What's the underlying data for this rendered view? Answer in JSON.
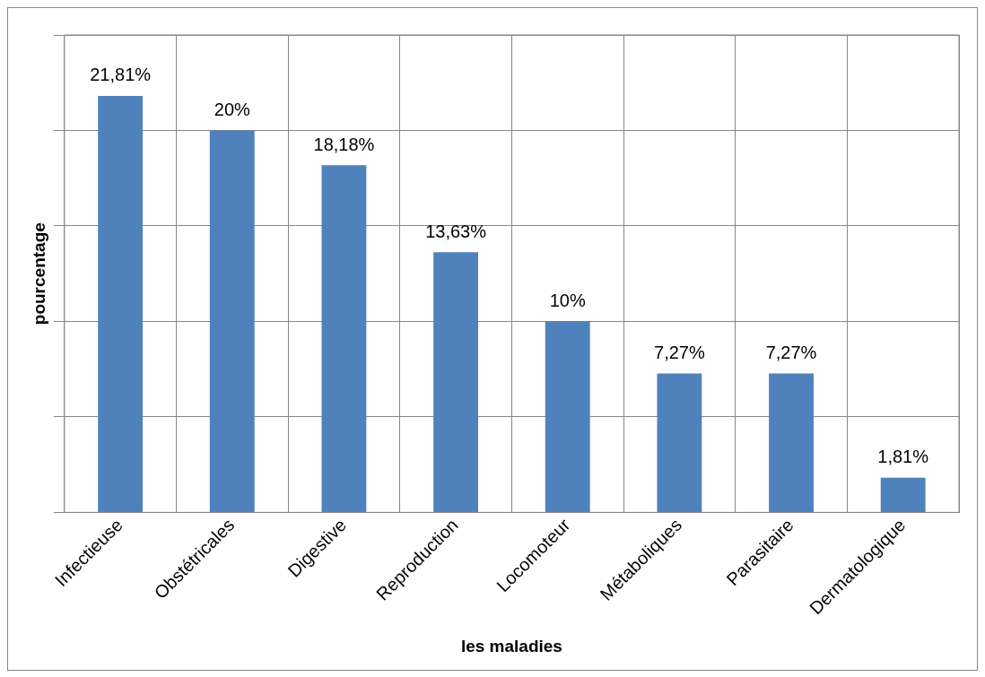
{
  "chart_data": {
    "type": "bar",
    "xlabel": "les maladies",
    "ylabel": "pourcentage",
    "categories": [
      "Infectieuse",
      "Obstétricales",
      "Digestive",
      "Reproduction",
      "Locomoteur",
      "Métaboliques",
      "Parasitaire",
      "Dermatologique"
    ],
    "values": [
      21.81,
      20,
      18.18,
      13.63,
      10,
      7.27,
      7.27,
      1.81
    ],
    "value_labels": [
      "21,81%",
      "20%",
      "18,18%",
      "13,63%",
      "10%",
      "7,27%",
      "7,27%",
      "1,81%"
    ],
    "color": "#4f81bd",
    "ylim": [
      0,
      25
    ],
    "yticks": [
      {
        "value": 0,
        "label": null
      },
      {
        "value": 5,
        "label": null
      },
      {
        "value": 10,
        "label": null
      },
      {
        "value": 15,
        "label": null
      },
      {
        "value": 20,
        "label": null
      },
      {
        "value": 25,
        "label": null
      }
    ],
    "tick_labels": "x",
    "grid": true,
    "legend": false
  }
}
